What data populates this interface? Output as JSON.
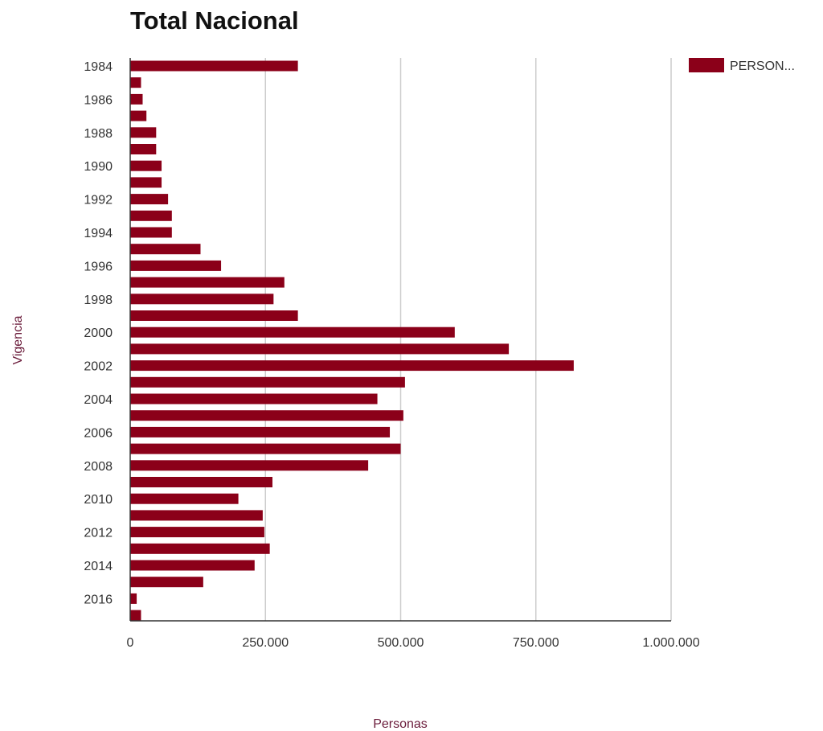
{
  "chart_data": {
    "type": "bar",
    "orientation": "horizontal",
    "title": "Total Nacional",
    "xlabel": "Personas",
    "ylabel": "Vigencia",
    "xlim": [
      0,
      1000000
    ],
    "x_ticks": [
      0,
      250000,
      500000,
      750000,
      1000000
    ],
    "x_tick_labels": [
      "0",
      "250.000",
      "500.000",
      "750.000",
      "1.000.000"
    ],
    "y_tick_labels": [
      "1984",
      "1986",
      "1988",
      "1990",
      "1992",
      "1994",
      "1996",
      "1998",
      "2000",
      "2002",
      "2004",
      "2006",
      "2008",
      "2010",
      "2012",
      "2014",
      "2016"
    ],
    "grid": true,
    "legend": {
      "position": "top-right",
      "label": "PERSON..."
    },
    "colors": {
      "bar": "#8b0019",
      "grid": "#cccccc",
      "axis": "#333333"
    },
    "categories": [
      "1984",
      "1985",
      "1986",
      "1987",
      "1988",
      "1989",
      "1990",
      "1991",
      "1992",
      "1993",
      "1994",
      "1995",
      "1996",
      "1997",
      "1998",
      "1999",
      "2000",
      "2001",
      "2002",
      "2003",
      "2004",
      "2005",
      "2006",
      "2007",
      "2008",
      "2009",
      "2010",
      "2011",
      "2012",
      "2013",
      "2014",
      "2015",
      "2016",
      "2017"
    ],
    "series": [
      {
        "values": [
          310000,
          20000,
          23000,
          30000,
          48000,
          48000,
          58000,
          58000,
          70000,
          77000,
          77000,
          130000,
          168000,
          285000,
          265000,
          310000,
          600000,
          700000,
          820000,
          508000,
          457000,
          505000,
          480000,
          500000,
          440000,
          263000,
          200000,
          245000,
          248000,
          258000,
          230000,
          135000,
          12000,
          20000
        ]
      }
    ]
  }
}
